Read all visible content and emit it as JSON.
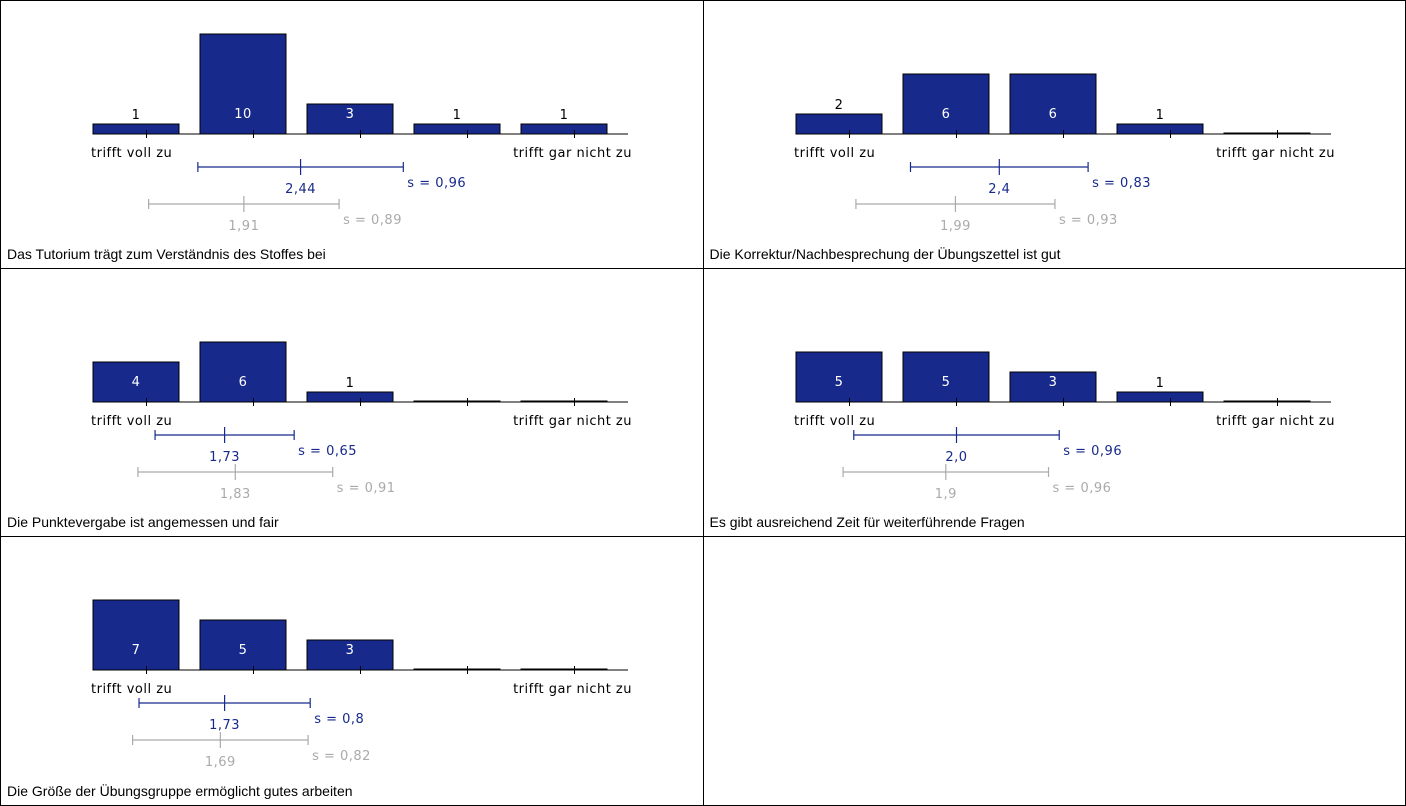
{
  "colors": {
    "bar": "#172a8c",
    "own_stat": "#172a8c",
    "ref_stat": "#aaaaaa",
    "axis": "#000000"
  },
  "scale": {
    "left_label": "trifft voll zu",
    "right_label": "trifft gar nicht zu",
    "min": 1,
    "max": 5
  },
  "chart_data": [
    {
      "type": "bar",
      "title": "Das Tutorium trägt zum Verständnis des Stoffes bei",
      "categories": [
        1,
        2,
        3,
        4,
        5
      ],
      "values": [
        1,
        10,
        3,
        1,
        1
      ],
      "mean": 2.44,
      "mean_label": "2,44",
      "sd": 0.96,
      "sd_label": "s = 0,96",
      "ref_mean": 1.91,
      "ref_mean_label": "1,91",
      "ref_sd": 0.89,
      "ref_sd_label": "s = 0,89"
    },
    {
      "type": "bar",
      "title": "Die Korrektur/Nachbesprechung der Übungszettel ist gut",
      "categories": [
        1,
        2,
        3,
        4,
        5
      ],
      "values": [
        2,
        6,
        6,
        1,
        0
      ],
      "mean": 2.4,
      "mean_label": "2,4",
      "sd": 0.83,
      "sd_label": "s = 0,83",
      "ref_mean": 1.99,
      "ref_mean_label": "1,99",
      "ref_sd": 0.93,
      "ref_sd_label": "s = 0,93"
    },
    {
      "type": "bar",
      "title": "Die Punktevergabe ist angemessen und fair",
      "categories": [
        1,
        2,
        3,
        4,
        5
      ],
      "values": [
        4,
        6,
        1,
        0,
        0
      ],
      "mean": 1.73,
      "mean_label": "1,73",
      "sd": 0.65,
      "sd_label": "s = 0,65",
      "ref_mean": 1.83,
      "ref_mean_label": "1,83",
      "ref_sd": 0.91,
      "ref_sd_label": "s = 0,91"
    },
    {
      "type": "bar",
      "title": "Es gibt ausreichend Zeit für weiterführende Fragen",
      "categories": [
        1,
        2,
        3,
        4,
        5
      ],
      "values": [
        5,
        5,
        3,
        1,
        0
      ],
      "mean": 2.0,
      "mean_label": "2,0",
      "sd": 0.96,
      "sd_label": "s = 0,96",
      "ref_mean": 1.9,
      "ref_mean_label": "1,9",
      "ref_sd": 0.96,
      "ref_sd_label": "s = 0,96"
    },
    {
      "type": "bar",
      "title": "Die Größe der Übungsgruppe ermöglicht gutes arbeiten",
      "categories": [
        1,
        2,
        3,
        4,
        5
      ],
      "values": [
        7,
        5,
        3,
        0,
        0
      ],
      "mean": 1.73,
      "mean_label": "1,73",
      "sd": 0.8,
      "sd_label": "s = 0,8",
      "ref_mean": 1.69,
      "ref_mean_label": "1,69",
      "ref_sd": 0.82,
      "ref_sd_label": "s = 0,82"
    }
  ]
}
